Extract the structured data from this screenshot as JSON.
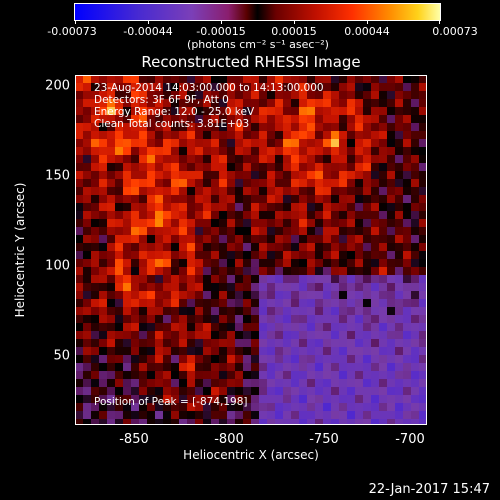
{
  "colorbar": {
    "tick_labels": [
      "-0.00073",
      "-0.00044",
      "-0.00015",
      "0.00015",
      "0.00044",
      "0.00073"
    ],
    "units": "(photons cm⁻² s⁻¹ asec⁻²)",
    "colors": [
      "#0000ff",
      "#7b3fb8",
      "#000000",
      "#c01000",
      "#ff8a00",
      "#ffffa8"
    ]
  },
  "title": "Reconstructed RHESSI Image",
  "info": {
    "time": "23-Aug-2014 14:03:00.000 to 14:13:00.000",
    "detectors": "Detectors: 3F 6F 9F, Att 0",
    "energy": "Energy Range: 12.0 - 25.0 keV",
    "clean": "Clean     Total counts: 3.81E+03"
  },
  "peak": "Position of Peak = [-874,198]",
  "x_axis": {
    "label": "Heliocentric X (arcsec)",
    "ticks": [
      "-850",
      "-800",
      "-750",
      "-700"
    ]
  },
  "y_axis": {
    "label": "Heliocentric Y (arcsec)",
    "ticks": [
      "200",
      "150",
      "100",
      "50"
    ]
  },
  "timestamp": "22-Jan-2017 15:47"
}
